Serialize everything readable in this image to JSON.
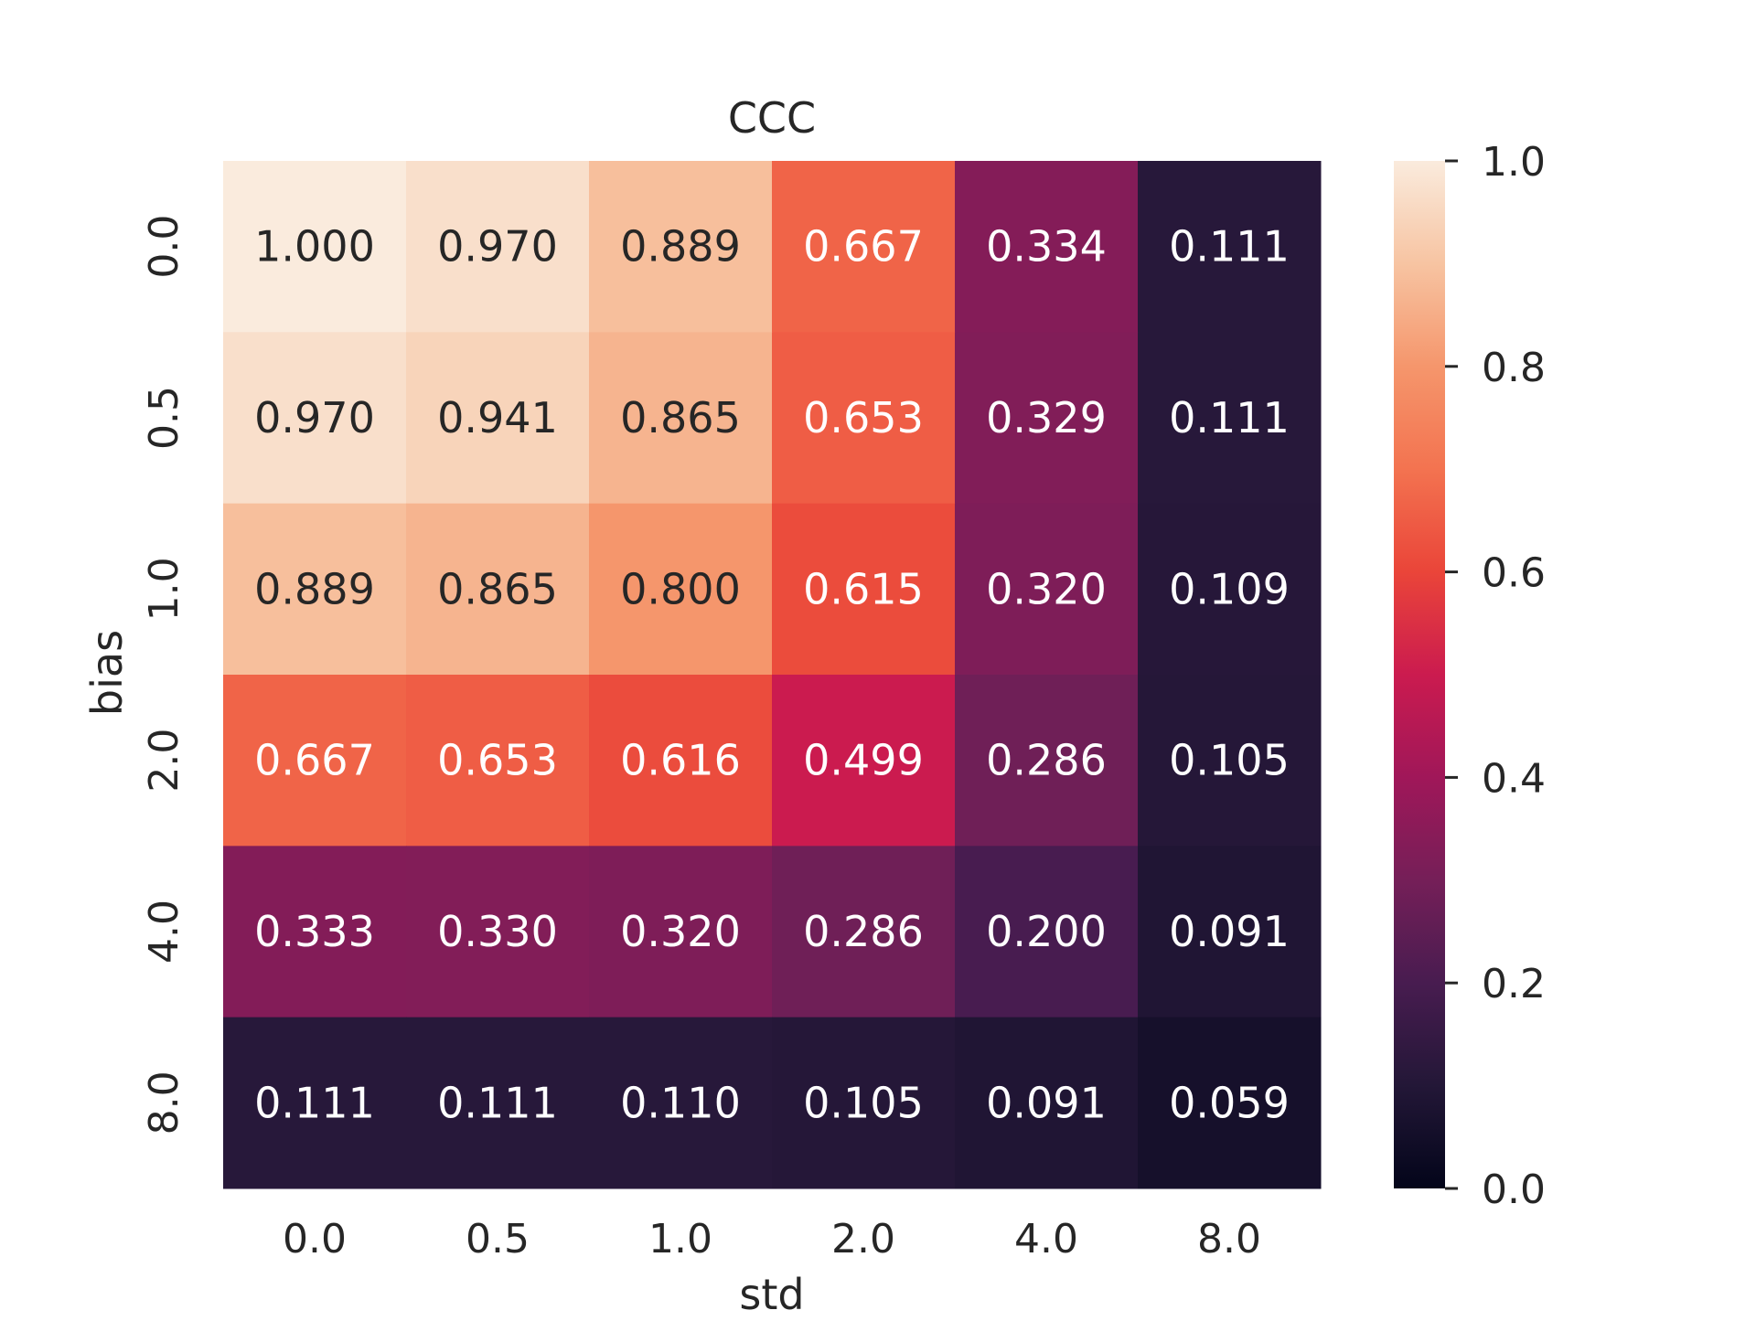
{
  "chart_data": {
    "type": "heatmap",
    "title": "CCC",
    "xlabel": "std",
    "ylabel": "bias",
    "x_categories": [
      "0.0",
      "0.5",
      "1.0",
      "2.0",
      "4.0",
      "8.0"
    ],
    "y_categories": [
      "0.0",
      "0.5",
      "1.0",
      "2.0",
      "4.0",
      "8.0"
    ],
    "values": [
      [
        1.0,
        0.97,
        0.889,
        0.667,
        0.334,
        0.111
      ],
      [
        0.97,
        0.941,
        0.865,
        0.653,
        0.329,
        0.111
      ],
      [
        0.889,
        0.865,
        0.8,
        0.615,
        0.32,
        0.109
      ],
      [
        0.667,
        0.653,
        0.616,
        0.499,
        0.286,
        0.105
      ],
      [
        0.333,
        0.33,
        0.32,
        0.286,
        0.2,
        0.091
      ],
      [
        0.111,
        0.111,
        0.11,
        0.105,
        0.091,
        0.059
      ]
    ],
    "value_format": "0.000",
    "colorbar": {
      "range": [
        0.0,
        1.0
      ],
      "ticks": [
        "0.0",
        "0.2",
        "0.4",
        "0.6",
        "0.8",
        "1.0"
      ],
      "colormap": "rocket"
    },
    "colors": {
      "text_light": "#ffffff",
      "text_dark": "#262626",
      "axis_text": "#262626"
    }
  }
}
